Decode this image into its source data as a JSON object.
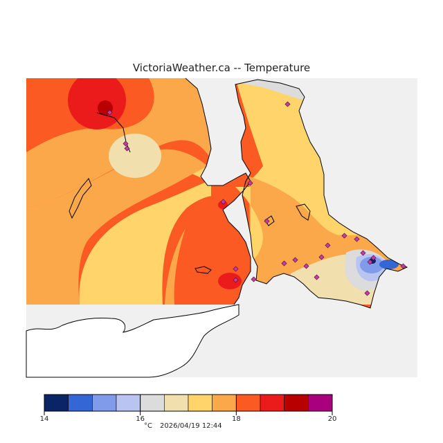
{
  "title": "VictoriaWeather.ca -- Temperature",
  "legend": {
    "unit": "°C",
    "timestamp": "2026/04/19 12:44",
    "ticks": [
      "14",
      "16",
      "18",
      "20"
    ],
    "bins": [
      {
        "from": 14.0,
        "to": 14.5,
        "color": "#0b2466"
      },
      {
        "from": 14.5,
        "to": 15.0,
        "color": "#3466d6"
      },
      {
        "from": 15.0,
        "to": 15.5,
        "color": "#7f9be9"
      },
      {
        "from": 15.5,
        "to": 16.0,
        "color": "#b9c5f0"
      },
      {
        "from": 16.0,
        "to": 16.5,
        "color": "#dcdcdc"
      },
      {
        "from": 16.5,
        "to": 17.0,
        "color": "#f2dfae"
      },
      {
        "from": 17.0,
        "to": 17.5,
        "color": "#ffd46b"
      },
      {
        "from": 17.5,
        "to": 18.0,
        "color": "#fba84a"
      },
      {
        "from": 18.0,
        "to": 18.5,
        "color": "#fb5b22"
      },
      {
        "from": 18.5,
        "to": 19.0,
        "color": "#ec1b1b"
      },
      {
        "from": 19.0,
        "to": 19.5,
        "color": "#b80000"
      },
      {
        "from": 19.5,
        "to": 20.0,
        "color": "#a8007e"
      }
    ]
  },
  "colors": {
    "water": "#f0f0f0",
    "nodata_land": "#ffffff",
    "coastline": "#000000",
    "station_marker": "#c2409c"
  }
}
